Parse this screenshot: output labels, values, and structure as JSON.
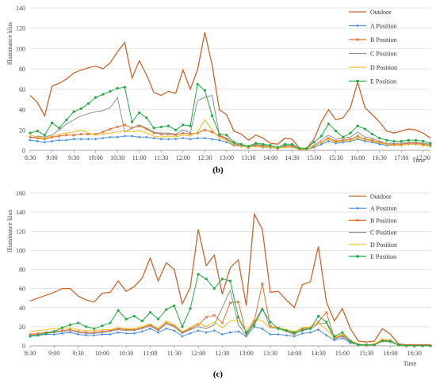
{
  "chart_data": [
    {
      "type": "line",
      "caption": "(b)",
      "ylabel": "Illuminance klux",
      "xlabel": "Time",
      "ylim": [
        0,
        140
      ],
      "yticks": [
        0,
        20,
        40,
        60,
        80,
        100,
        120,
        140
      ],
      "x_start": "8:30",
      "x_step_minutes": 10,
      "tick_labels": [
        "8:30",
        "9:00",
        "9:30",
        "10:00",
        "10:30",
        "11:00",
        "11:30",
        "12:00",
        "12:30",
        "13:00",
        "13:30",
        "14:00",
        "14:30",
        "15:00",
        "15:30",
        "16:00",
        "16:30",
        "17:00",
        "17:30"
      ],
      "grid": "horizontal",
      "legend": "top-right",
      "series": [
        {
          "name": "Outdoor",
          "color": "#c8662e",
          "marker": "none",
          "values": [
            54,
            47,
            34,
            63,
            66,
            70,
            76,
            79,
            81,
            83,
            80,
            86,
            97,
            106,
            71,
            88,
            74,
            57,
            54,
            58,
            56,
            79,
            60,
            79,
            116,
            84,
            40,
            35,
            19,
            16,
            10,
            15,
            12,
            7,
            6,
            12,
            11,
            2,
            2,
            11,
            28,
            40,
            30,
            32,
            42,
            67,
            42,
            35,
            28,
            19,
            17,
            19,
            21,
            20,
            17,
            12
          ]
        },
        {
          "name": "A Position",
          "color": "#4a90d9",
          "marker": "diamond",
          "values": [
            10,
            9,
            8,
            9,
            10,
            10,
            11,
            11,
            11,
            11,
            12,
            13,
            13,
            14,
            14,
            13,
            13,
            12,
            11,
            11,
            11,
            12,
            11,
            12,
            12,
            11,
            10,
            8,
            5,
            4,
            3,
            4,
            3,
            3,
            2,
            3,
            3,
            1,
            1,
            3,
            6,
            9,
            7,
            8,
            9,
            11,
            9,
            8,
            6,
            5,
            5,
            5,
            6,
            6,
            5,
            4
          ]
        },
        {
          "name": "B Position",
          "color": "#e07030",
          "marker": "cross",
          "values": [
            13,
            12,
            11,
            13,
            14,
            15,
            15,
            16,
            16,
            16,
            18,
            21,
            23,
            25,
            22,
            24,
            21,
            17,
            16,
            16,
            15,
            17,
            16,
            17,
            20,
            18,
            14,
            11,
            6,
            5,
            3,
            5,
            4,
            3,
            2,
            4,
            4,
            1,
            1,
            4,
            8,
            12,
            9,
            10,
            11,
            14,
            11,
            10,
            8,
            6,
            6,
            6,
            7,
            7,
            6,
            5
          ]
        },
        {
          "name": "C Position",
          "color": "#909090",
          "marker": "none",
          "values": [
            12,
            14,
            13,
            15,
            20,
            26,
            30,
            34,
            36,
            38,
            39,
            42,
            52,
            18,
            22,
            25,
            22,
            18,
            17,
            17,
            16,
            20,
            17,
            49,
            52,
            54,
            15,
            12,
            7,
            5,
            3,
            6,
            5,
            4,
            2,
            5,
            5,
            1,
            1,
            5,
            10,
            15,
            11,
            12,
            13,
            18,
            13,
            12,
            9,
            7,
            7,
            7,
            8,
            8,
            7,
            6
          ]
        },
        {
          "name": "D Position",
          "color": "#f2c018",
          "marker": "none",
          "values": [
            15,
            13,
            12,
            14,
            16,
            17,
            18,
            20,
            17,
            15,
            16,
            17,
            18,
            19,
            18,
            19,
            17,
            14,
            13,
            14,
            13,
            15,
            14,
            18,
            30,
            20,
            12,
            10,
            6,
            4,
            3,
            4,
            3,
            3,
            2,
            3,
            3,
            1,
            1,
            4,
            8,
            11,
            8,
            9,
            10,
            12,
            10,
            9,
            7,
            6,
            5,
            5,
            6,
            6,
            5,
            4
          ]
        },
        {
          "name": "E Position",
          "color": "#22aa44",
          "marker": "dot",
          "values": [
            17,
            19,
            15,
            27,
            22,
            30,
            38,
            41,
            46,
            52,
            55,
            58,
            61,
            62,
            28,
            37,
            32,
            22,
            23,
            24,
            20,
            25,
            24,
            65,
            59,
            34,
            16,
            15,
            8,
            6,
            4,
            7,
            6,
            5,
            3,
            6,
            6,
            2,
            2,
            8,
            14,
            26,
            19,
            13,
            17,
            24,
            21,
            16,
            12,
            10,
            9,
            9,
            10,
            10,
            9,
            7
          ]
        }
      ]
    },
    {
      "type": "line",
      "caption": "(c)",
      "ylabel": "Illuminance klux",
      "xlabel": "Time",
      "ylim": [
        0,
        160
      ],
      "yticks": [
        0,
        20,
        40,
        60,
        80,
        100,
        120,
        140,
        160
      ],
      "x_start": "8:30",
      "x_step_minutes": 10,
      "tick_labels": [
        "8:30",
        "9:00",
        "9:30",
        "10:00",
        "10:30",
        "11:00",
        "11:30",
        "12:00",
        "12:30",
        "13:00",
        "13:30",
        "14:00",
        "14:30",
        "15:00",
        "15:30",
        "16:00",
        "16:30"
      ],
      "grid": "horizontal",
      "legend": "top-right",
      "series": [
        {
          "name": "Outdoor",
          "color": "#c8662e",
          "marker": "none",
          "values": [
            47,
            50,
            53,
            56,
            60,
            60,
            52,
            48,
            46,
            55,
            56,
            68,
            57,
            62,
            71,
            92,
            68,
            87,
            80,
            44,
            61,
            122,
            84,
            95,
            54,
            82,
            90,
            42,
            138,
            122,
            56,
            57,
            48,
            40,
            64,
            67,
            104,
            46,
            26,
            39,
            18,
            5,
            4,
            5,
            18,
            12,
            2,
            1,
            1,
            1,
            1
          ]
        },
        {
          "name": "A Position",
          "color": "#4a90d9",
          "marker": "diamond",
          "values": [
            10,
            11,
            12,
            12,
            13,
            14,
            12,
            11,
            11,
            12,
            12,
            14,
            13,
            13,
            15,
            18,
            14,
            18,
            16,
            10,
            13,
            16,
            14,
            16,
            12,
            14,
            15,
            10,
            20,
            18,
            12,
            12,
            11,
            10,
            13,
            14,
            17,
            11,
            6,
            8,
            3,
            1,
            1,
            1,
            5,
            4,
            1,
            0,
            0,
            0,
            0
          ]
        },
        {
          "name": "B Position",
          "color": "#e07030",
          "marker": "cross",
          "values": [
            12,
            13,
            14,
            15,
            16,
            17,
            15,
            14,
            14,
            15,
            16,
            18,
            17,
            17,
            19,
            22,
            17,
            24,
            21,
            14,
            18,
            22,
            30,
            32,
            24,
            45,
            46,
            12,
            26,
            65,
            20,
            19,
            16,
            13,
            18,
            19,
            25,
            35,
            8,
            11,
            5,
            1,
            1,
            1,
            6,
            5,
            1,
            0,
            0,
            0,
            0
          ]
        },
        {
          "name": "C Position",
          "color": "#909090",
          "marker": "none",
          "values": [
            11,
            12,
            13,
            14,
            15,
            16,
            14,
            13,
            13,
            14,
            15,
            17,
            16,
            16,
            18,
            21,
            16,
            23,
            20,
            13,
            17,
            20,
            18,
            22,
            40,
            58,
            22,
            11,
            24,
            40,
            19,
            18,
            15,
            12,
            17,
            18,
            23,
            24,
            7,
            10,
            4,
            1,
            1,
            1,
            5,
            4,
            1,
            0,
            0,
            0,
            0
          ]
        },
        {
          "name": "D Position",
          "color": "#f2c018",
          "marker": "none",
          "values": [
            15,
            16,
            17,
            18,
            18,
            19,
            17,
            16,
            16,
            17,
            17,
            19,
            18,
            18,
            20,
            23,
            18,
            26,
            22,
            15,
            19,
            24,
            20,
            25,
            19,
            26,
            27,
            15,
            28,
            26,
            19,
            19,
            17,
            15,
            19,
            20,
            24,
            17,
            9,
            12,
            6,
            2,
            1,
            2,
            7,
            6,
            1,
            0,
            0,
            0,
            0
          ]
        },
        {
          "name": "E Position",
          "color": "#22aa44",
          "marker": "dot",
          "values": [
            10,
            11,
            13,
            15,
            19,
            22,
            24,
            20,
            18,
            21,
            24,
            37,
            28,
            31,
            26,
            35,
            28,
            38,
            42,
            20,
            39,
            75,
            70,
            60,
            70,
            68,
            30,
            14,
            22,
            38,
            25,
            18,
            16,
            14,
            16,
            18,
            31,
            25,
            10,
            14,
            5,
            1,
            1,
            1,
            5,
            5,
            1,
            0,
            0,
            0,
            0
          ]
        }
      ]
    }
  ]
}
